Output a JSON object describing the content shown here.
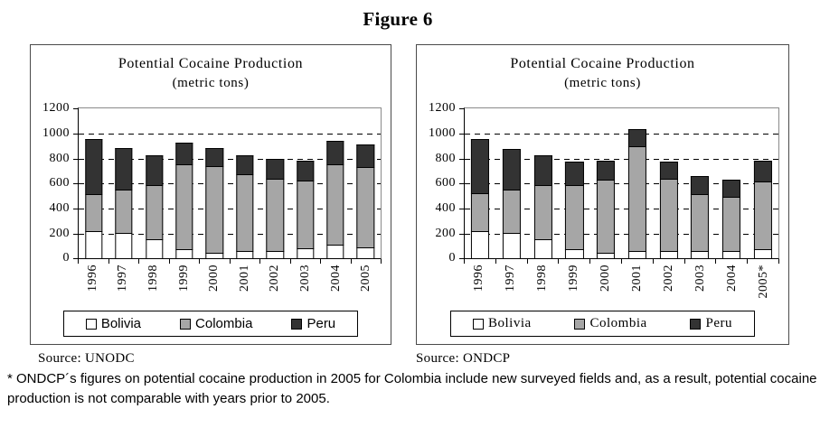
{
  "figure_title": "Figure 6",
  "footnote": "* ONDCP´s figures on potential cocaine production in 2005 for Colombia include new surveyed fields and, as a result, potential cocaine production is not comparable with years prior to 2005.",
  "colors": {
    "bolivia": "#ffffff",
    "colombia": "#a6a6a6",
    "peru": "#333333",
    "bar_border": "#000000"
  },
  "chart_data": [
    {
      "type": "bar",
      "stacked": true,
      "title_line1": "Potential Cocaine Production",
      "title_line2": "(metric tons)",
      "source_prefix": "Source:",
      "source": "UNODC",
      "categories": [
        "1996",
        "1997",
        "1998",
        "1999",
        "2000",
        "2001",
        "2002",
        "2003",
        "2004",
        "2005"
      ],
      "series": [
        {
          "name": "Bolivia",
          "color": "#ffffff",
          "values": [
            215,
            200,
            150,
            70,
            43,
            60,
            60,
            79,
            107,
            90
          ]
        },
        {
          "name": "Colombia",
          "color": "#a6a6a6",
          "values": [
            295,
            345,
            435,
            680,
            695,
            617,
            580,
            540,
            640,
            640
          ]
        },
        {
          "name": "Peru",
          "color": "#333333",
          "values": [
            440,
            330,
            240,
            175,
            142,
            150,
            160,
            160,
            190,
            180
          ]
        }
      ],
      "ylim": [
        0,
        1200
      ],
      "yticks": [
        0,
        200,
        400,
        600,
        800,
        1000,
        1200
      ],
      "grid": "dashed-horizontal",
      "legend_position": "bottom",
      "xlabel": "",
      "ylabel": ""
    },
    {
      "type": "bar",
      "stacked": true,
      "title_line1": "Potential Cocaine Production",
      "title_line2": "(metric tons)",
      "source_prefix": "Source:",
      "source": "ONDCP",
      "categories": [
        "1996",
        "1997",
        "1998",
        "1999",
        "2000",
        "2001",
        "2002",
        "2003",
        "2004",
        "2005*"
      ],
      "series": [
        {
          "name": "Bolivia",
          "color": "#ffffff",
          "values": [
            215,
            200,
            150,
            70,
            43,
            60,
            60,
            60,
            60,
            70
          ]
        },
        {
          "name": "Colombia",
          "color": "#a6a6a6",
          "values": [
            300,
            350,
            435,
            510,
            585,
            840,
            580,
            455,
            435,
            545
          ]
        },
        {
          "name": "Peru",
          "color": "#333333",
          "values": [
            435,
            325,
            240,
            185,
            152,
            140,
            135,
            145,
            135,
            165
          ]
        }
      ],
      "ylim": [
        0,
        1200
      ],
      "yticks": [
        0,
        200,
        400,
        600,
        800,
        1000,
        1200
      ],
      "grid": "dashed-horizontal",
      "legend_position": "bottom",
      "xlabel": "",
      "ylabel": ""
    }
  ]
}
